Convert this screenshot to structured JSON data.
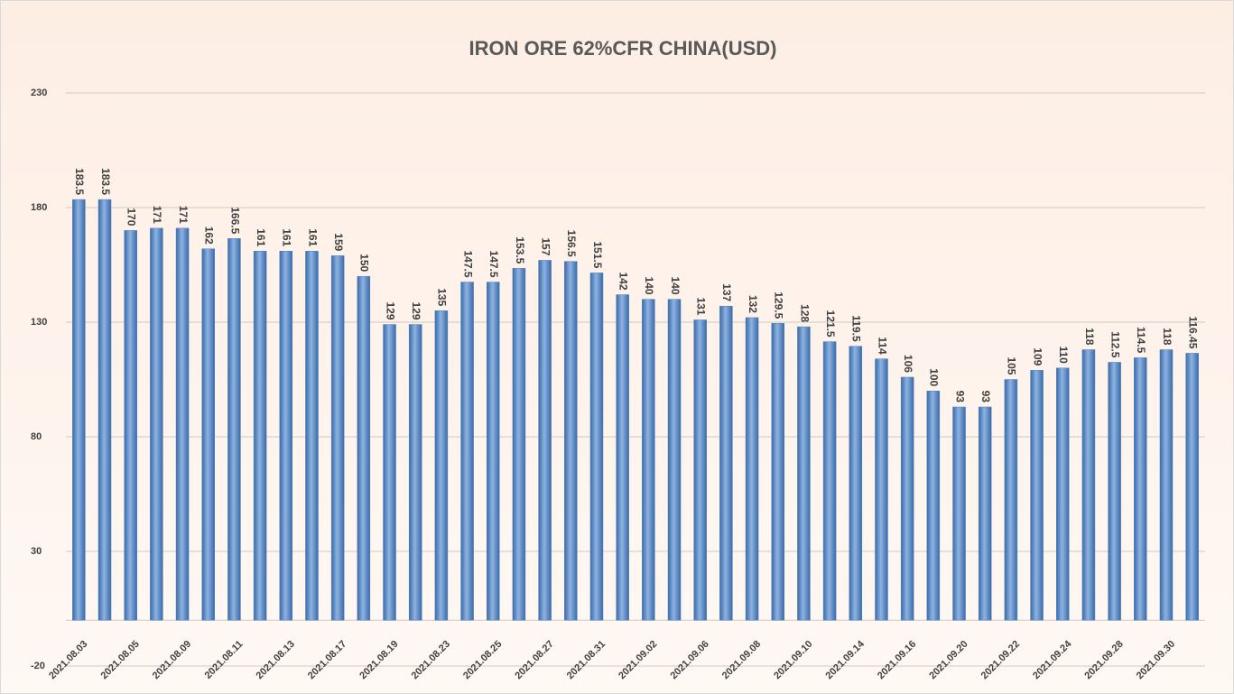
{
  "chart_data": {
    "type": "bar",
    "title": "IRON ORE 62%CFR CHINA(USD)",
    "categories": [
      "2021.08.03",
      null,
      "2021.08.05",
      null,
      "2021.08.09",
      null,
      "2021.08.11",
      null,
      "2021.08.13",
      null,
      "2021.08.17",
      null,
      "2021.08.19",
      null,
      "2021.08.23",
      null,
      "2021.08.25",
      null,
      "2021.08.27",
      null,
      "2021.08.31",
      null,
      "2021.09.02",
      null,
      "2021.09.06",
      null,
      "2021.09.08",
      null,
      "2021.09.10",
      null,
      "2021.09.14",
      null,
      "2021.09.16",
      null,
      "2021.09.20",
      null,
      "2021.09.22",
      null,
      "2021.09.24",
      null,
      "2021.09.28",
      null,
      "2021.09.30",
      null
    ],
    "values": [
      183.5,
      183.5,
      170,
      171,
      171,
      162,
      166.5,
      161,
      161,
      161,
      159,
      150,
      129,
      129,
      135,
      147.5,
      147.5,
      153.5,
      157,
      156.5,
      151.5,
      142,
      140,
      140,
      131,
      137,
      132,
      129.5,
      128,
      121.5,
      119.5,
      114,
      106,
      100,
      93,
      93,
      105,
      109,
      110,
      118,
      112.5,
      114.5,
      118,
      116.45
    ],
    "color": "#4f81bd",
    "ylim": [
      -20,
      230
    ],
    "yticks": [
      -20,
      30,
      80,
      130,
      180,
      230
    ],
    "grid": true
  }
}
